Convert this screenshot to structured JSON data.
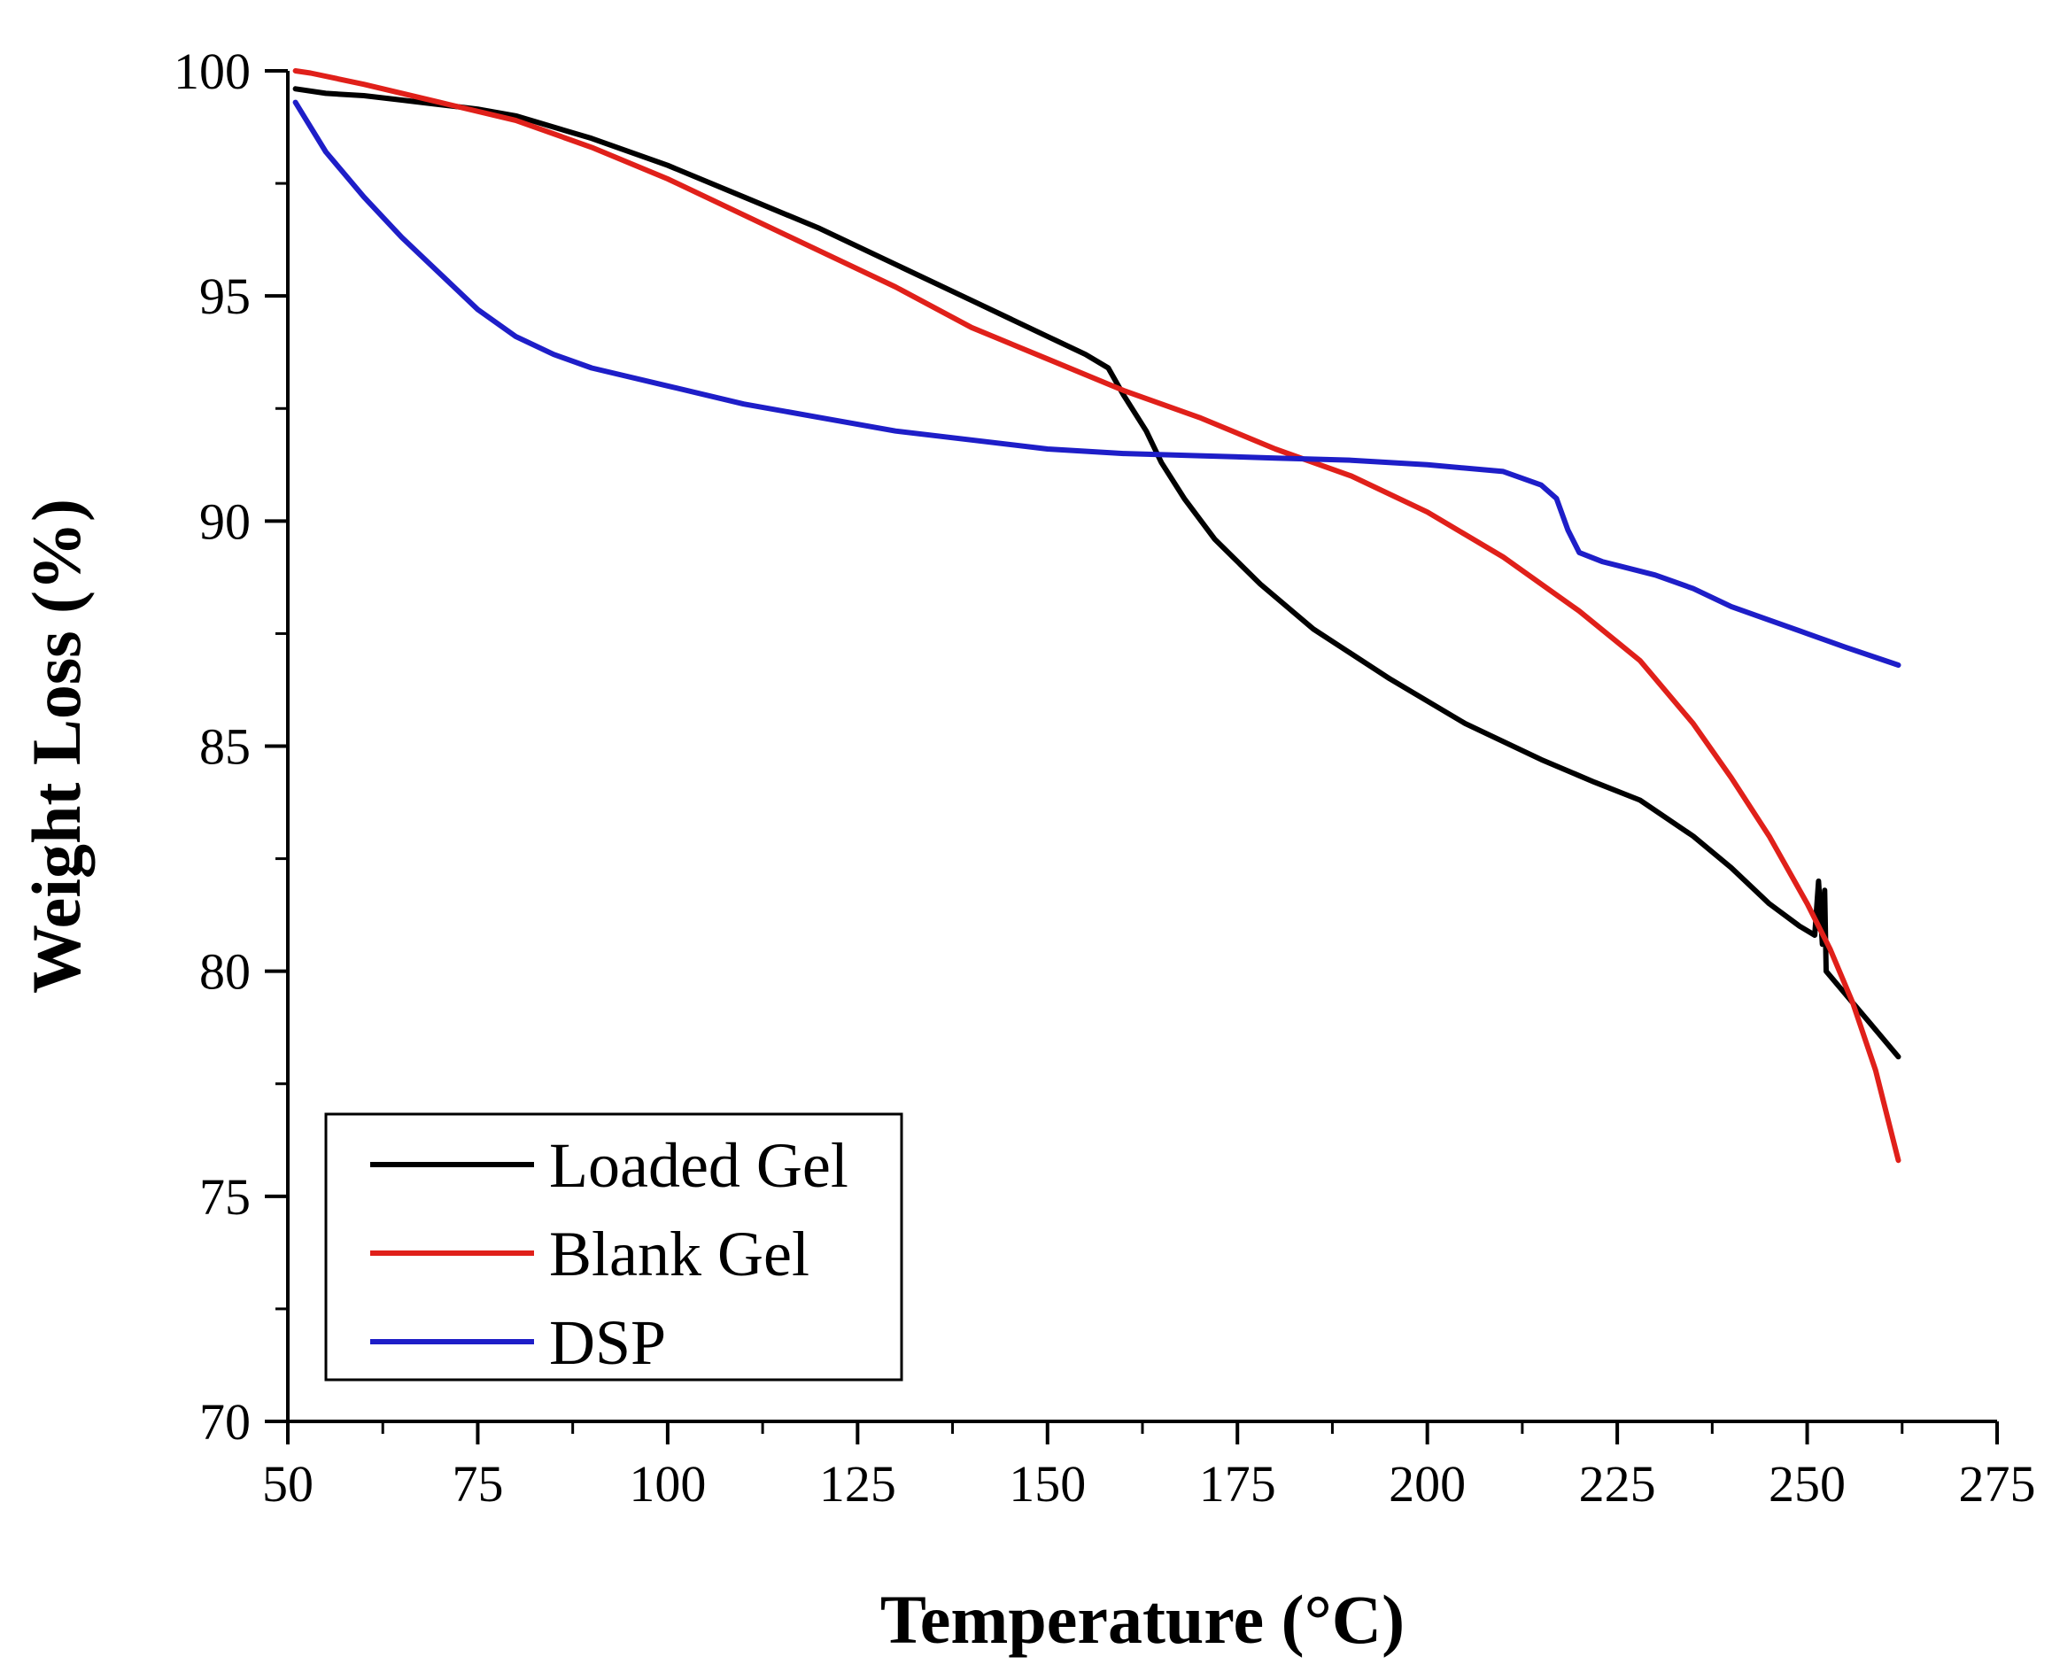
{
  "chart_data": {
    "type": "line",
    "title": "",
    "xlabel": "Temperature (°C)",
    "ylabel": "Weight Loss (%)",
    "xlim": [
      50,
      275
    ],
    "ylim": [
      70,
      100
    ],
    "x_ticks": [
      50,
      75,
      100,
      125,
      150,
      175,
      200,
      225,
      250,
      275
    ],
    "y_ticks": [
      70,
      75,
      80,
      85,
      90,
      95,
      100
    ],
    "grid": false,
    "legend_position": "bottom-left",
    "series": [
      {
        "name": "Loaded Gel",
        "color": "#000000",
        "points": [
          [
            51,
            99.6
          ],
          [
            55,
            99.5
          ],
          [
            60,
            99.45
          ],
          [
            65,
            99.35
          ],
          [
            70,
            99.25
          ],
          [
            75,
            99.15
          ],
          [
            80,
            99.0
          ],
          [
            90,
            98.5
          ],
          [
            100,
            97.9
          ],
          [
            110,
            97.2
          ],
          [
            120,
            96.5
          ],
          [
            130,
            95.7
          ],
          [
            140,
            94.9
          ],
          [
            150,
            94.1
          ],
          [
            155,
            93.7
          ],
          [
            158,
            93.4
          ],
          [
            160,
            92.8
          ],
          [
            163,
            92.0
          ],
          [
            165,
            91.3
          ],
          [
            168,
            90.5
          ],
          [
            172,
            89.6
          ],
          [
            178,
            88.6
          ],
          [
            185,
            87.6
          ],
          [
            195,
            86.5
          ],
          [
            205,
            85.5
          ],
          [
            215,
            84.7
          ],
          [
            222,
            84.2
          ],
          [
            228,
            83.8
          ],
          [
            235,
            83.0
          ],
          [
            240,
            82.3
          ],
          [
            245,
            81.5
          ],
          [
            249,
            81.0
          ],
          [
            251,
            80.8
          ],
          [
            251.5,
            82.0
          ],
          [
            252,
            80.6
          ],
          [
            252.3,
            81.8
          ],
          [
            252.5,
            80.0
          ],
          [
            255,
            79.5
          ],
          [
            258,
            78.9
          ],
          [
            262,
            78.1
          ]
        ]
      },
      {
        "name": "Blank Gel",
        "color": "#e0201a",
        "points": [
          [
            51,
            100.0
          ],
          [
            53,
            99.95
          ],
          [
            60,
            99.7
          ],
          [
            70,
            99.3
          ],
          [
            80,
            98.9
          ],
          [
            90,
            98.3
          ],
          [
            100,
            97.6
          ],
          [
            110,
            96.8
          ],
          [
            120,
            96.0
          ],
          [
            130,
            95.2
          ],
          [
            140,
            94.3
          ],
          [
            150,
            93.6
          ],
          [
            160,
            92.9
          ],
          [
            170,
            92.3
          ],
          [
            180,
            91.6
          ],
          [
            190,
            91.0
          ],
          [
            200,
            90.2
          ],
          [
            210,
            89.2
          ],
          [
            220,
            88.0
          ],
          [
            228,
            86.9
          ],
          [
            235,
            85.5
          ],
          [
            240,
            84.3
          ],
          [
            245,
            83.0
          ],
          [
            250,
            81.5
          ],
          [
            253,
            80.5
          ],
          [
            256,
            79.3
          ],
          [
            259,
            77.8
          ],
          [
            262,
            75.8
          ]
        ]
      },
      {
        "name": "DSP",
        "color": "#1e1ec8",
        "points": [
          [
            51,
            99.3
          ],
          [
            55,
            98.2
          ],
          [
            60,
            97.2
          ],
          [
            65,
            96.3
          ],
          [
            70,
            95.5
          ],
          [
            75,
            94.7
          ],
          [
            80,
            94.1
          ],
          [
            85,
            93.7
          ],
          [
            90,
            93.4
          ],
          [
            100,
            93.0
          ],
          [
            110,
            92.6
          ],
          [
            120,
            92.3
          ],
          [
            130,
            92.0
          ],
          [
            140,
            91.8
          ],
          [
            150,
            91.6
          ],
          [
            160,
            91.5
          ],
          [
            170,
            91.45
          ],
          [
            180,
            91.4
          ],
          [
            190,
            91.35
          ],
          [
            200,
            91.25
          ],
          [
            210,
            91.1
          ],
          [
            215,
            90.8
          ],
          [
            217,
            90.5
          ],
          [
            218.5,
            89.8
          ],
          [
            220,
            89.3
          ],
          [
            223,
            89.1
          ],
          [
            230,
            88.8
          ],
          [
            235,
            88.5
          ],
          [
            240,
            88.1
          ],
          [
            245,
            87.8
          ],
          [
            250,
            87.5
          ],
          [
            255,
            87.2
          ],
          [
            262,
            86.8
          ]
        ]
      }
    ]
  }
}
